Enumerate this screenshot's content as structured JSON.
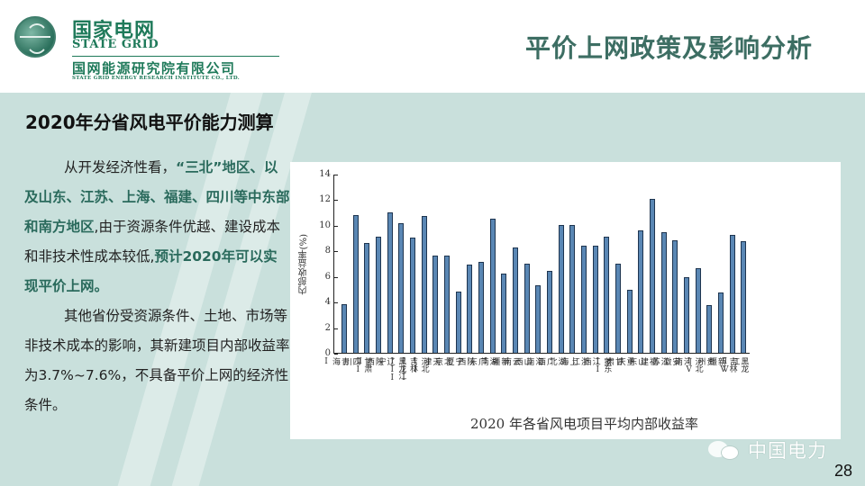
{
  "header": {
    "brand_cn": "国家电网",
    "brand_en": "STATE GRID",
    "institute_cn": "国网能源研究院有限公司",
    "institute_en": "STATE GRID ENERGY RESEARCH INSTITUTE CO., LTD.",
    "page_title": "平价上网政策及影响分析"
  },
  "section_title": "2020年分省风电平价能力测算",
  "body": {
    "p1_a": "从开发经济性看，",
    "p1_hl1": "“三北”地区、以及山东、江苏、上海、福建、四川等中东部和南方地区",
    "p1_b": ",由于资源条件优越、建设成本和非技术性成本较低,",
    "p1_hl2": "预计2020年可以实现平价上网。",
    "p2": "其他省份受资源条件、土地、市场等非技术成本的影响，其新建项目内部收益率为3.7%~7.6%，不具备平价上网的经济性条件。"
  },
  "chart_data": {
    "type": "bar",
    "title": "2020 年各省风电项目平均内部收益率",
    "xlabel": "",
    "ylabel": "内部收益率(%)",
    "ylim": [
      0,
      14
    ],
    "yticks": [
      "0",
      "2",
      "4",
      "6",
      "8",
      "10",
      "12",
      "14"
    ],
    "grid": false,
    "categories": [
      "青海I",
      "四川",
      "甘肃II",
      "陕西I",
      "辽宁",
      "黑龙江III",
      "吉林III",
      "河北II",
      "天津",
      "北京",
      "宁夏",
      "陕西",
      "广东",
      "湖南",
      "新疆I",
      "云南",
      "山西",
      "海南",
      "广西",
      "湖北",
      "上海",
      "浙江",
      "江西",
      "蒙东II",
      "甘肃",
      "重庆",
      "山东",
      "福建",
      "江苏",
      "安徽",
      "河南",
      "河北IV",
      "贵州",
      "新疆",
      "吉林IV",
      "黑龙江IV"
    ],
    "values": [
      3.8,
      10.8,
      8.6,
      9.1,
      11.0,
      10.1,
      9.0,
      10.7,
      7.6,
      7.6,
      4.8,
      6.9,
      7.1,
      10.5,
      6.2,
      8.2,
      7.0,
      5.3,
      6.4,
      10.0,
      10.0,
      8.4,
      8.4,
      9.1,
      7.0,
      4.9,
      9.6,
      12.0,
      9.4,
      8.8,
      5.9,
      6.6,
      3.7,
      4.7,
      9.2,
      8.7
    ],
    "bar_color": "#5a87b4"
  },
  "footer": {
    "watermark": "中国电力",
    "page_number": "28"
  },
  "colors": {
    "accent_green": "#1f7a5a",
    "title_green": "#3d6e63",
    "highlight": "#2a6a5c",
    "background": "#c9e0dc"
  }
}
